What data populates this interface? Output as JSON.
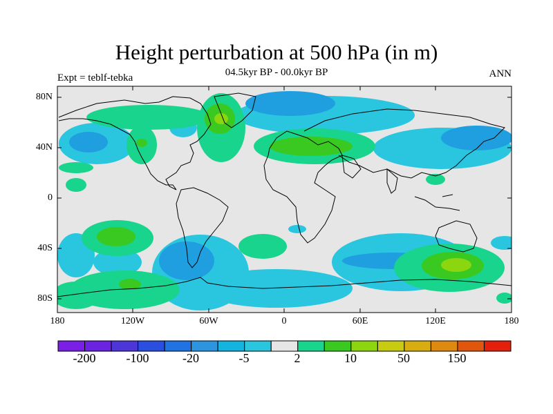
{
  "title": "Height perturbation at 500 hPa (in m)",
  "subtitle": "04.5kyr BP - 00.0kyr BP",
  "left_label": "Expt = teblf-tebka",
  "right_label": "ANN",
  "lat_labels": [
    "80N",
    "40N",
    "0",
    "40S",
    "80S"
  ],
  "lon_labels": [
    "180",
    "120W",
    "60W",
    "0",
    "60E",
    "120E",
    "180"
  ],
  "colorbar": {
    "labels": [
      "-200",
      "-100",
      "-20",
      "-5",
      "2",
      "10",
      "50",
      "150"
    ],
    "colors": [
      "#7a1fe5",
      "#6a23e0",
      "#4d36d8",
      "#2a4ee0",
      "#1f73e2",
      "#2d94e0",
      "#13b5de",
      "#2ac6e0",
      "#e6e6e6",
      "#18d48c",
      "#3ac920",
      "#8cd610",
      "#c8cc10",
      "#d9ac10",
      "#de8a10",
      "#e0560c",
      "#e41f0c"
    ]
  },
  "field_colors": {
    "background": "#e6e6e6",
    "light_blue": "#2ac6e0",
    "blue": "#1f9fe0",
    "dark_blue": "#1f73e2",
    "green": "#18d48c",
    "lime": "#3ac920",
    "yellow_green": "#8cd610",
    "yellow": "#c8cc10"
  }
}
